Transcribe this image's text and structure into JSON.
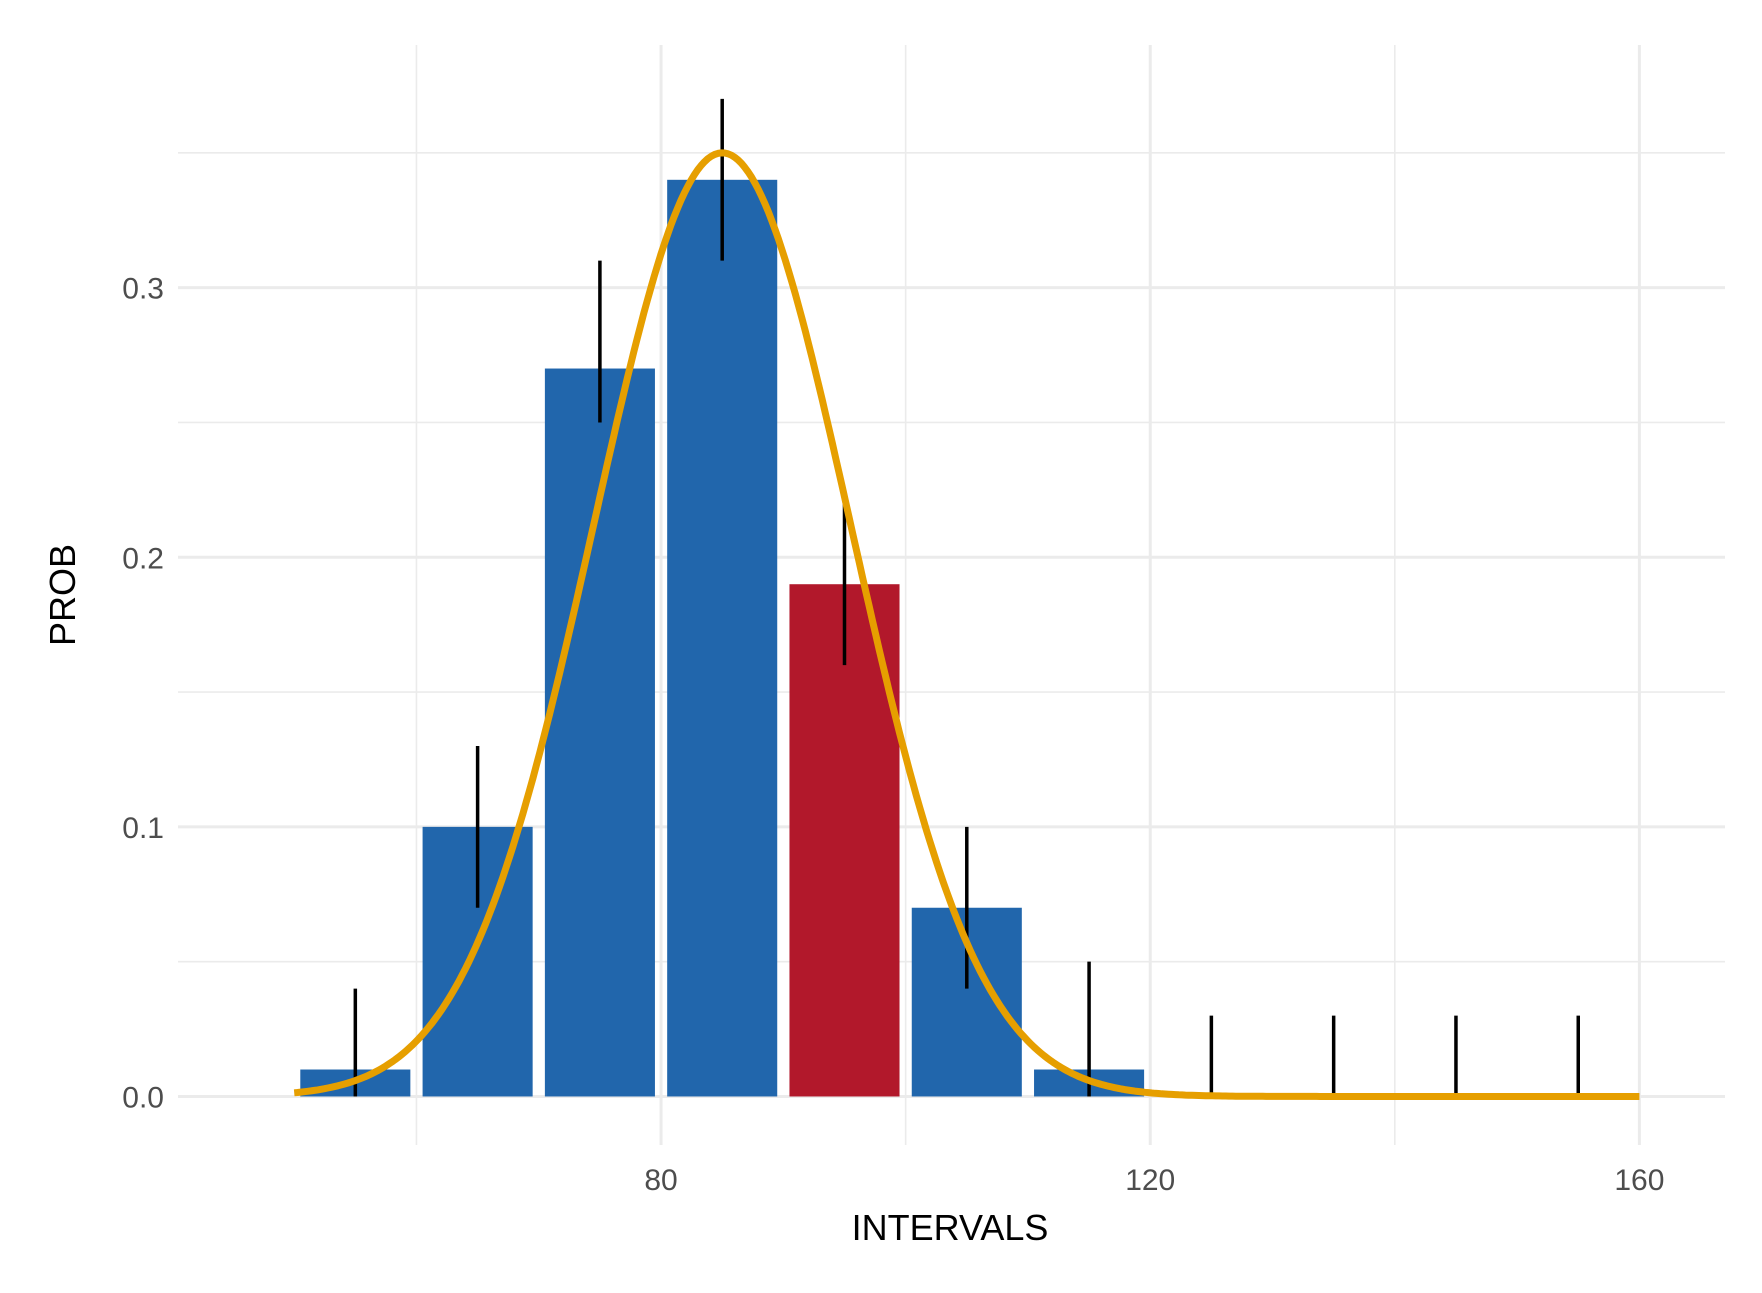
{
  "chart_data": {
    "type": "bar",
    "xlabel": "INTERVALS",
    "ylabel": "PROB",
    "xlim": [
      40.5,
      167
    ],
    "ylim": [
      -0.018,
      0.39
    ],
    "x_ticks": [
      80,
      120,
      160
    ],
    "x_tick_labels": [
      "80",
      "120",
      "160"
    ],
    "x_minor_ticks": [
      60,
      100,
      140
    ],
    "y_ticks": [
      0.0,
      0.1,
      0.2,
      0.3
    ],
    "y_tick_labels": [
      "0.0",
      "0.1",
      "0.2",
      "0.3"
    ],
    "y_minor_ticks": [
      0.05,
      0.15,
      0.25,
      0.35
    ],
    "grid": true,
    "bar_width": 9,
    "bars": [
      {
        "x": 55,
        "value": 0.01,
        "err_low": 0.0,
        "err_high": 0.04,
        "color": "#2166ac"
      },
      {
        "x": 65,
        "value": 0.1,
        "err_low": 0.07,
        "err_high": 0.13,
        "color": "#2166ac"
      },
      {
        "x": 75,
        "value": 0.27,
        "err_low": 0.25,
        "err_high": 0.31,
        "color": "#2166ac"
      },
      {
        "x": 85,
        "value": 0.34,
        "err_low": 0.31,
        "err_high": 0.37,
        "color": "#2166ac"
      },
      {
        "x": 95,
        "value": 0.19,
        "err_low": 0.16,
        "err_high": 0.22,
        "color": "#b2182b"
      },
      {
        "x": 105,
        "value": 0.07,
        "err_low": 0.04,
        "err_high": 0.1,
        "color": "#2166ac"
      },
      {
        "x": 115,
        "value": 0.01,
        "err_low": 0.0,
        "err_high": 0.05,
        "color": "#2166ac"
      },
      {
        "x": 125,
        "value": 0.0,
        "err_low": 0.0,
        "err_high": 0.03,
        "color": "#2166ac"
      },
      {
        "x": 135,
        "value": 0.0,
        "err_low": 0.0,
        "err_high": 0.03,
        "color": "#2166ac"
      },
      {
        "x": 145,
        "value": 0.0,
        "err_low": 0.0,
        "err_high": 0.03,
        "color": "#2166ac"
      },
      {
        "x": 155,
        "value": 0.0,
        "err_low": 0.0,
        "err_high": 0.03,
        "color": "#2166ac"
      }
    ],
    "curve": {
      "type": "normal-density",
      "mean": 85,
      "peak": 0.35,
      "sd": 10.5,
      "x_range": [
        50,
        160
      ],
      "color": "#e69f00"
    },
    "colors": {
      "bar": "#2166ac",
      "highlight_bar": "#b2182b",
      "error_bar": "#000000",
      "curve": "#e69f00",
      "grid": "#ebebeb"
    }
  }
}
